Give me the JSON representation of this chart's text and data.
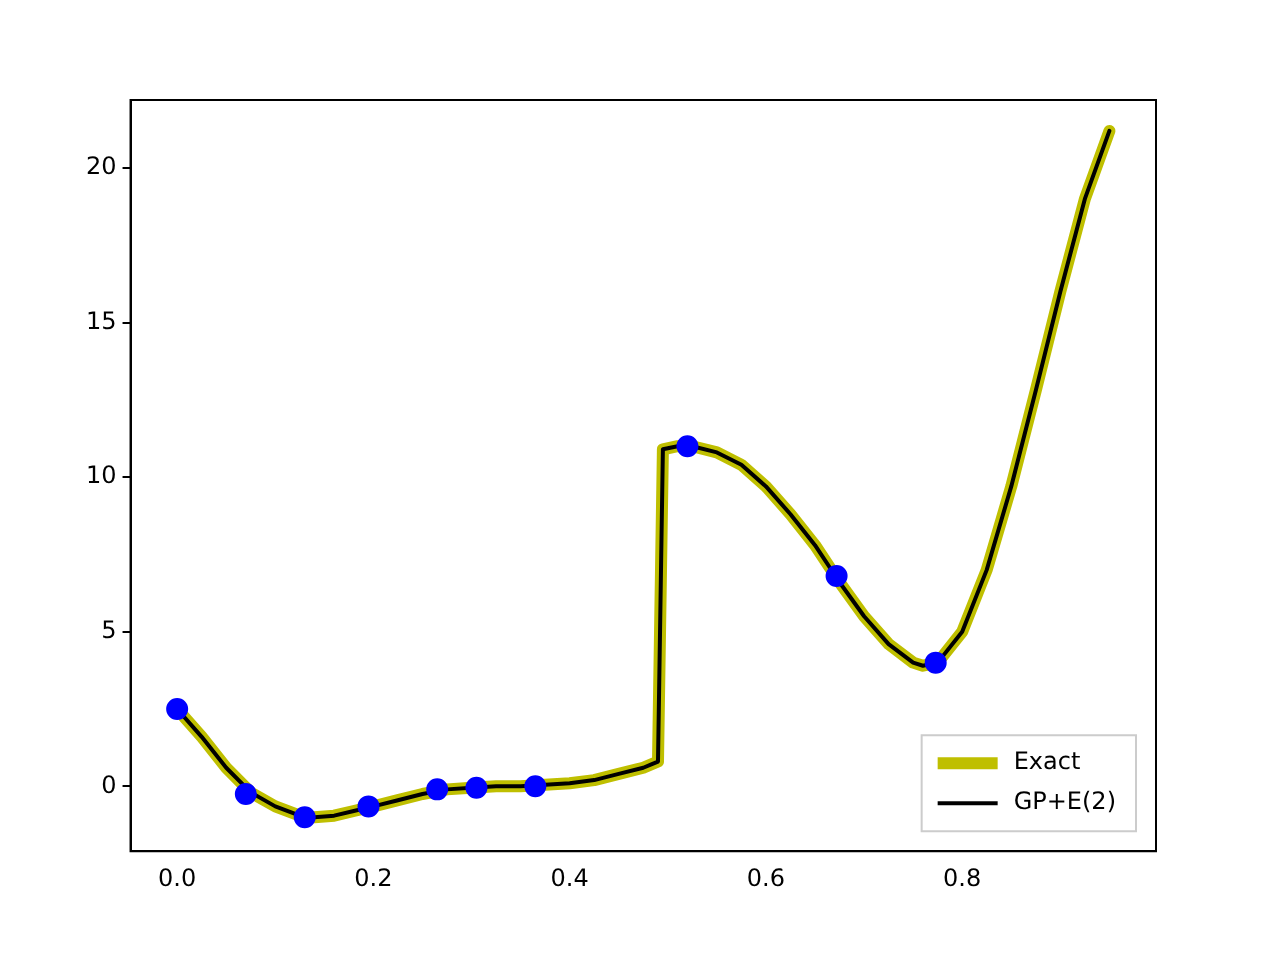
{
  "chart_data": {
    "type": "line",
    "x": [
      0,
      0.025,
      0.05,
      0.075,
      0.1,
      0.125,
      0.14,
      0.16,
      0.18,
      0.2,
      0.225,
      0.25,
      0.275,
      0.3,
      0.325,
      0.35,
      0.375,
      0.4,
      0.425,
      0.45,
      0.475,
      0.49,
      0.495,
      0.51,
      0.525,
      0.55,
      0.575,
      0.6,
      0.625,
      0.65,
      0.675,
      0.7,
      0.725,
      0.75,
      0.76,
      0.775,
      0.8,
      0.825,
      0.85,
      0.875,
      0.9,
      0.925,
      0.95
    ],
    "series": [
      {
        "name": "Exact",
        "color": "#bfbf00",
        "line_style": "solid",
        "marker": "none",
        "values": [
          2.5,
          1.6,
          0.6,
          -0.2,
          -0.65,
          -0.95,
          -1.0,
          -0.95,
          -0.8,
          -0.65,
          -0.45,
          -0.25,
          -0.1,
          -0.05,
          0.0,
          0.0,
          0.05,
          0.1,
          0.2,
          0.4,
          0.6,
          0.8,
          10.9,
          11.0,
          11.0,
          10.8,
          10.4,
          9.7,
          8.8,
          7.8,
          6.6,
          5.5,
          4.6,
          4.0,
          3.9,
          4.0,
          5.0,
          7.0,
          9.7,
          12.8,
          16.0,
          19.0,
          21.2
        ]
      },
      {
        "name": "GP+E(2)",
        "color": "#000000",
        "line_style": "solid",
        "marker": "none",
        "values": [
          2.5,
          1.6,
          0.6,
          -0.2,
          -0.65,
          -0.95,
          -1.0,
          -0.95,
          -0.8,
          -0.65,
          -0.45,
          -0.25,
          -0.1,
          -0.05,
          0.0,
          0.0,
          0.05,
          0.1,
          0.2,
          0.4,
          0.6,
          0.8,
          10.9,
          11.0,
          11.0,
          10.8,
          10.4,
          9.7,
          8.8,
          7.8,
          6.6,
          5.5,
          4.6,
          4.0,
          3.9,
          4.0,
          5.0,
          7.0,
          9.7,
          12.8,
          16.0,
          19.0,
          21.2
        ]
      },
      {
        "type": "scatter",
        "color": "#0000ff",
        "marker": "circle",
        "x": [
          0,
          0.07,
          0.13,
          0.195,
          0.265,
          0.305,
          0.365,
          0.52,
          0.672,
          0.773
        ],
        "values": [
          2.5,
          -0.25,
          -1.0,
          -0.65,
          -0.1,
          -0.05,
          0.0,
          11.0,
          6.8,
          4.0
        ]
      }
    ],
    "xlim": [
      -0.0475,
      0.9975
    ],
    "xticks": [
      {
        "value": 0,
        "label": "0.0"
      },
      {
        "value": 0.2,
        "label": "0.2"
      },
      {
        "value": 0.4,
        "label": "0.4"
      },
      {
        "value": 0.6,
        "label": "0.6"
      },
      {
        "value": 0.8,
        "label": "0.8"
      }
    ],
    "ylim": [
      -2.1,
      22.2
    ],
    "yticks": [
      0,
      5,
      10,
      15,
      20
    ],
    "grid": false,
    "legend": "bottom right"
  }
}
